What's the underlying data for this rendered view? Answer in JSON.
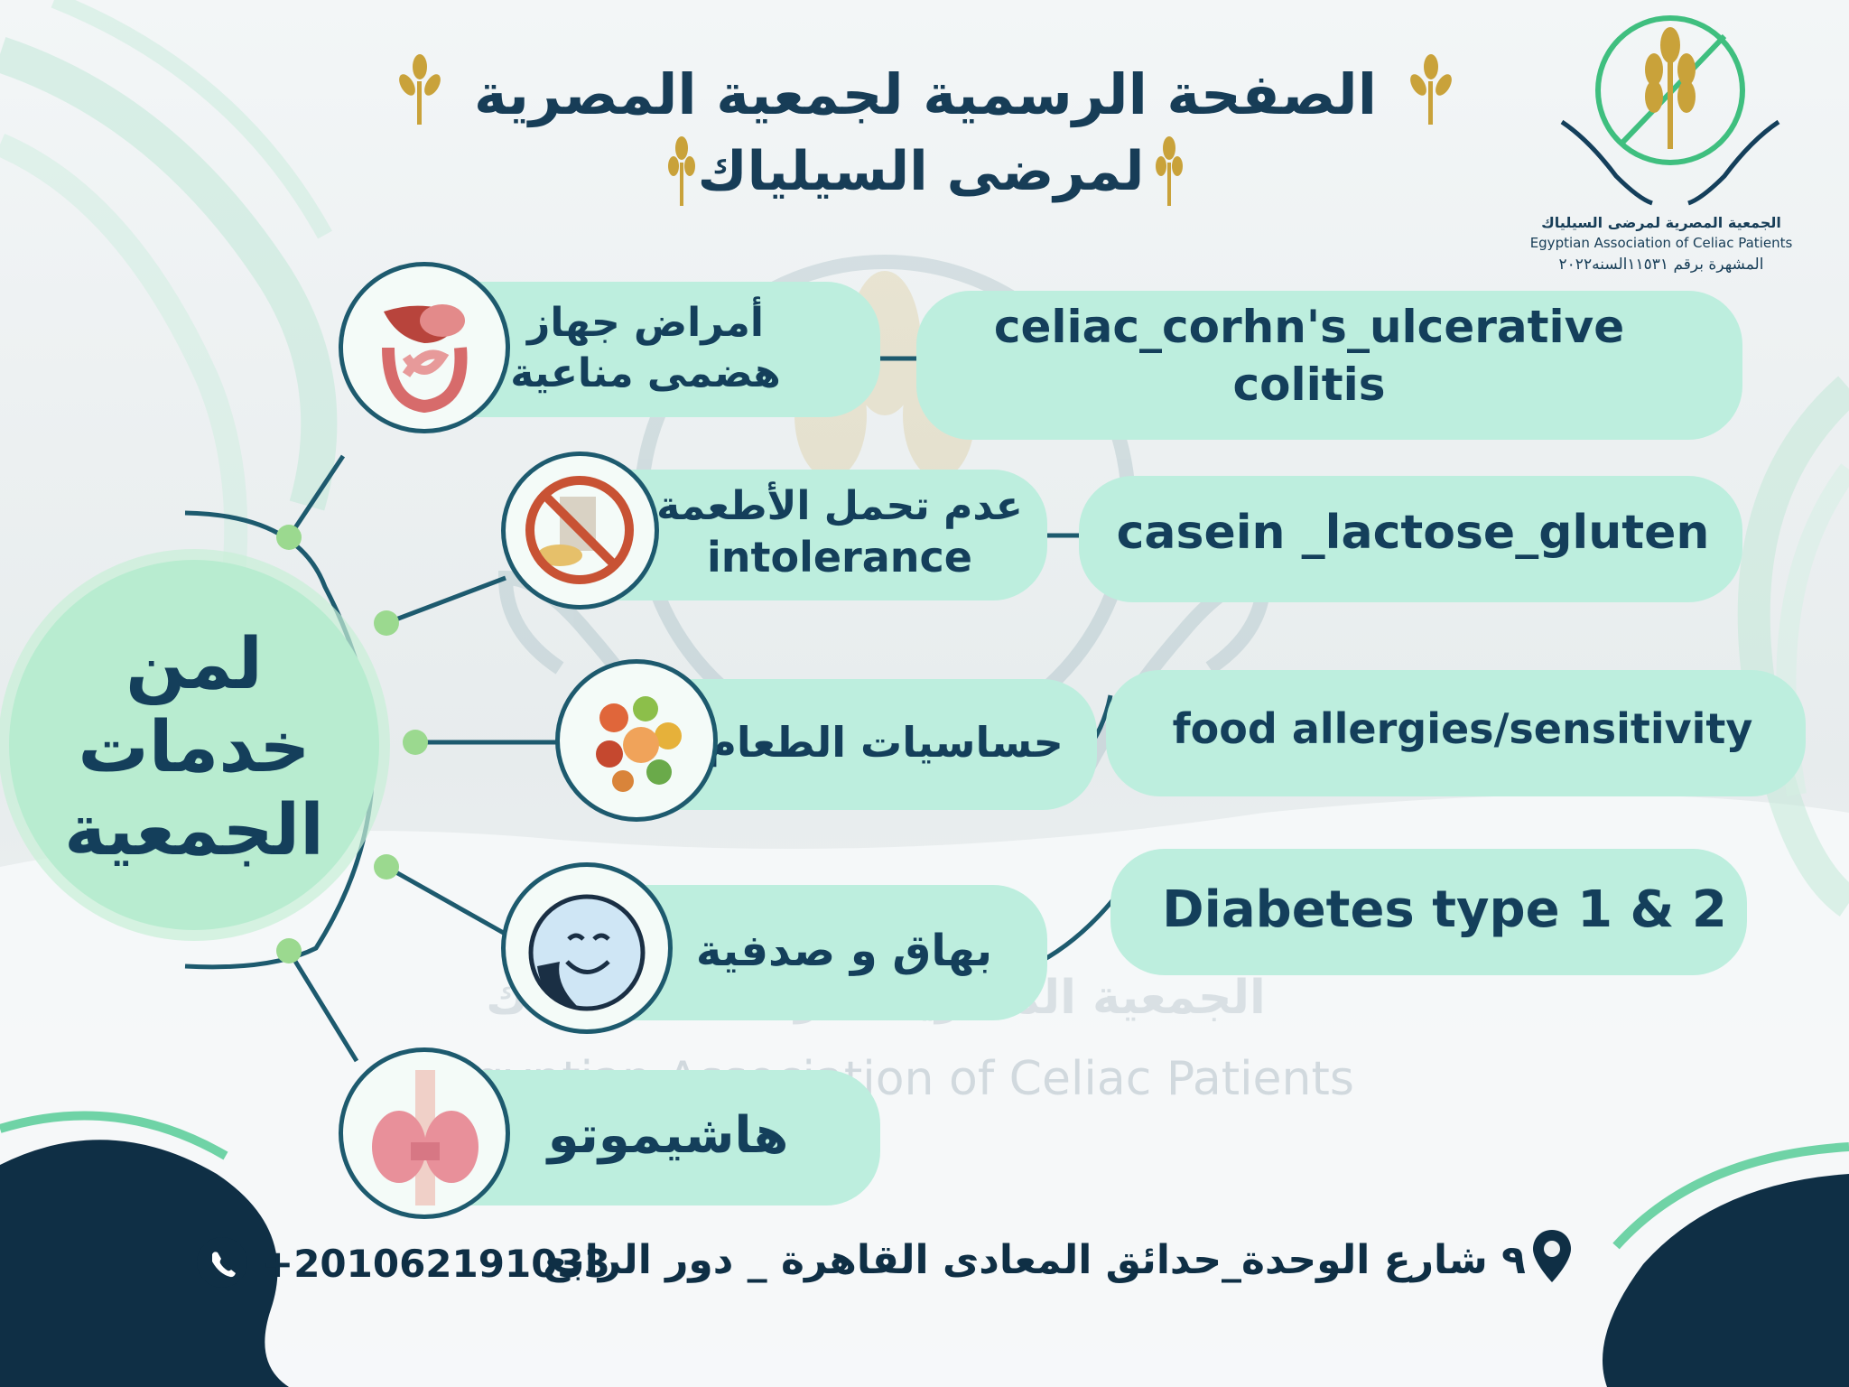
{
  "header": {
    "title_line1": "الصفحة الرسمية لجمعية المصرية",
    "title_line2": "لمرضى السيلياك"
  },
  "logo": {
    "name_ar": "الجمعية المصرية لمرضى السيلياك",
    "name_en": "Egyptian Association of Celiac Patients",
    "registration": "المشهرة برقم ١١٥٣١السنه٢٠٢٢"
  },
  "watermark": {
    "name_ar": "الجمعية المصرية لمرضى السيلياك",
    "name_en": "Egyptian Association of Celiac Patients"
  },
  "center": {
    "label": "لمن خدمات الجمعية"
  },
  "services": [
    {
      "ar": "أمراض جهاز هضمى مناعية",
      "en": "celiac_corhn's_ulcerative colitis",
      "icon": "digestive-system-icon"
    },
    {
      "ar": "عدم تحمل الأطعمة",
      "ar_en": "intolerance",
      "en": "casein _lactose_gluten",
      "icon": "no-food-icon"
    },
    {
      "ar": "حساسيات الطعام",
      "en": "food allergies/sensitivity",
      "icon": "food-variety-icon"
    },
    {
      "ar": "بهاق و صدفية",
      "en": "Diabetes type 1 & 2",
      "icon": "smiley-face-icon"
    },
    {
      "ar": "هاشيموتو",
      "icon": "thyroid-icon"
    }
  ],
  "footer": {
    "phone": "+201062191033",
    "address": "٩ شارع الوحدة_حدائق المعادى القاهرة _ دور الرابع"
  },
  "colors": {
    "navy": "#143f5b",
    "mint": "#bdeede",
    "gold": "#c9a23a",
    "green": "#9bd98f"
  }
}
